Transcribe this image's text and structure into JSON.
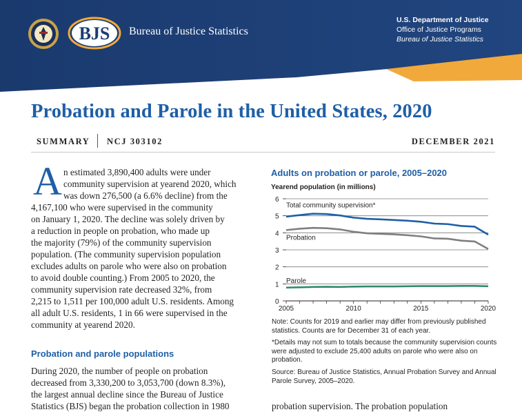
{
  "header": {
    "bjs_logo_text": "BJS",
    "bjs_name": "Bureau of Justice Statistics",
    "department": "U.S. Department of Justice",
    "office": "Office of Justice Programs",
    "bureau": "Bureau of Justice Statistics",
    "colors": {
      "navy": "#1b3d73",
      "gold": "#f2a93b"
    }
  },
  "title": "Probation and Parole in the United States, 2020",
  "meta": {
    "summary": "SUMMARY",
    "ncj": "NCJ 303102",
    "date": "DECEMBER 2021"
  },
  "body": {
    "drop_cap": "A",
    "lines": [
      "n estimated 3,890,400 adults were under",
      "community supervision at yearend 2020, which",
      "was down 276,500 (a 6.6% decline) from the",
      "4,167,100 who were supervised in the community",
      "on January 1, 2020. The decline was solely driven by",
      "a reduction in people on probation, who made up",
      "the majority (79%) of the community supervision",
      "population. (The community supervision population",
      "excludes adults on parole who were also on probation",
      "to avoid double counting.) From 2005 to 2020, the",
      "community supervision rate decreased 32%, from",
      "2,215 to 1,511 per 100,000 adult U.S. residents. Among",
      "all adult U.S. residents, 1 in 66 were supervised in the",
      "community at yearend 2020."
    ],
    "subhead": "Probation and parole populations",
    "lines2": [
      "During 2020, the number of people on probation",
      "decreased from 3,330,200 to 3,053,700 (down 8.3%),",
      "the largest annual decline since the Bureau of Justice",
      "Statistics (BJS) began the probation collection in 1980"
    ],
    "right_bottom": "probation supervision. The probation population"
  },
  "chart_data": {
    "type": "line",
    "title": "Adults on probation or parole, 2005–2020",
    "ylabel": "Yearend population (in millions)",
    "x": [
      2005,
      2006,
      2007,
      2008,
      2009,
      2010,
      2011,
      2012,
      2013,
      2014,
      2015,
      2016,
      2017,
      2018,
      2019,
      2020
    ],
    "xticks": [
      "2005",
      "2010",
      "2015",
      "2020"
    ],
    "yticks": [
      "0",
      "1",
      "2",
      "3",
      "4",
      "5",
      "6"
    ],
    "ylim": [
      0,
      6
    ],
    "grid": true,
    "series": [
      {
        "name": "Total community supervision*",
        "color": "#1f5fa6",
        "values": [
          4.95,
          5.04,
          5.12,
          5.1,
          5.02,
          4.89,
          4.82,
          4.79,
          4.75,
          4.71,
          4.65,
          4.54,
          4.51,
          4.4,
          4.36,
          3.89
        ]
      },
      {
        "name": "Probation",
        "color": "#7f7f7f",
        "values": [
          4.16,
          4.24,
          4.29,
          4.27,
          4.2,
          4.06,
          3.97,
          3.94,
          3.91,
          3.86,
          3.79,
          3.67,
          3.65,
          3.54,
          3.49,
          3.05
        ]
      },
      {
        "name": "Parole",
        "color": "#2e8b6a",
        "values": [
          0.78,
          0.8,
          0.82,
          0.83,
          0.82,
          0.84,
          0.85,
          0.85,
          0.85,
          0.86,
          0.87,
          0.87,
          0.87,
          0.88,
          0.88,
          0.86
        ]
      }
    ]
  },
  "notes": [
    "Note: Counts for 2019 and earlier may differ from previously published statistics. Counts are for December 31 of each year.",
    "*Details may not sum to totals because the community supervision counts were adjusted to exclude 25,400 adults on parole who were also on probation.",
    "Source: Bureau of Justice Statistics, Annual Probation Survey and Annual Parole Survey, 2005–2020."
  ]
}
